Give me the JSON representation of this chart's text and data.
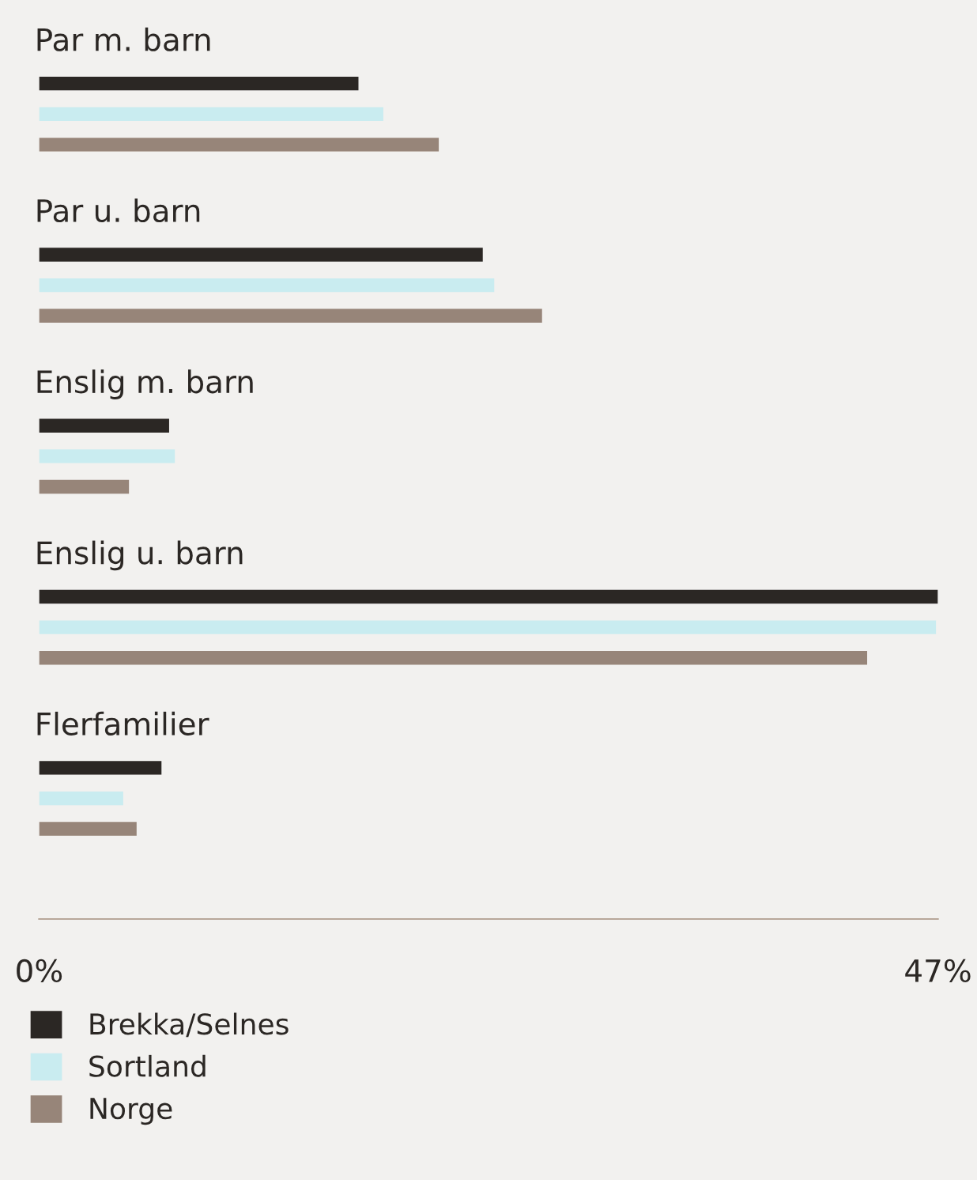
{
  "chart_data": {
    "type": "bar",
    "orientation": "horizontal",
    "categories": [
      "Par m. barn",
      "Par u. barn",
      "Enslig m. barn",
      "Enslig u. barn",
      "Flerfamilier"
    ],
    "series": [
      {
        "name": "Brekka/Selnes",
        "color": "#2b2724",
        "values": [
          16.7,
          23.2,
          6.8,
          47.0,
          6.4
        ]
      },
      {
        "name": "Sortland",
        "color": "#c9ecf0",
        "values": [
          18.0,
          23.8,
          7.1,
          46.9,
          4.4
        ]
      },
      {
        "name": "Norge",
        "color": "#978579",
        "values": [
          20.9,
          26.3,
          4.7,
          43.3,
          5.1
        ]
      }
    ],
    "xlim": [
      0,
      47
    ],
    "xticks": [
      {
        "value": 0,
        "label": "0%"
      },
      {
        "value": 47,
        "label": "47%"
      }
    ],
    "tick_labels": "x",
    "grid": false,
    "legend": "bottom"
  }
}
